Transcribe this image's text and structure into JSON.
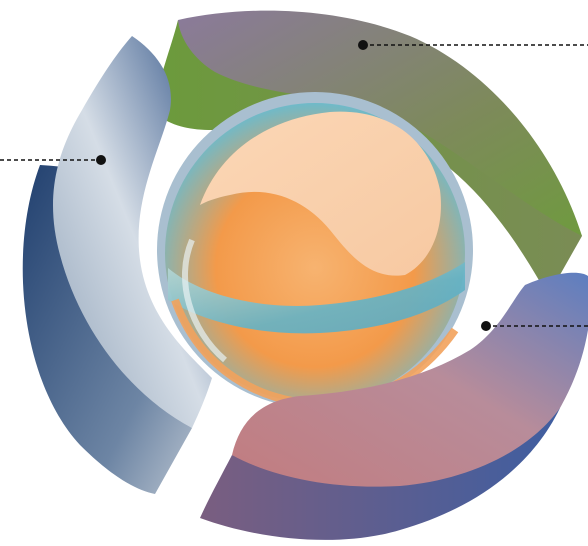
{
  "diagram": {
    "segments": [
      {
        "name": "top-right",
        "color_light": "#8b7a9b",
        "color_dark": "#6f9a3f"
      },
      {
        "name": "left",
        "color_light": "#e4e4e6",
        "color_dark": "#1e3f6e"
      },
      {
        "name": "bottom-right",
        "color_light": "#c98a8f",
        "color_dark": "#3e5c9c"
      }
    ],
    "center": {
      "color_warm": "#f6a04d",
      "color_cool": "#5fb4c8"
    },
    "callouts": [
      {
        "segment": "top-right",
        "text": ""
      },
      {
        "segment": "left",
        "text": ""
      },
      {
        "segment": "bottom-right",
        "text": ""
      }
    ]
  }
}
